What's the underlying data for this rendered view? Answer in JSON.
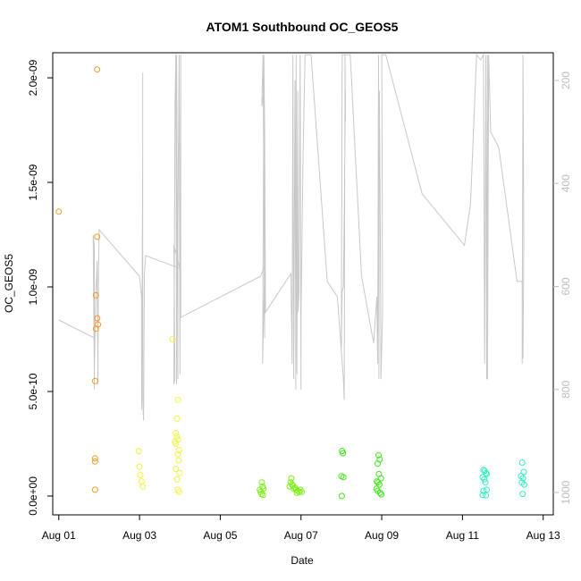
{
  "chart_data": {
    "type": "scatter",
    "title": "ATOM1 Southbound OC_GEOS5",
    "xlabel": "Date",
    "ylabel": "OC_GEOS5",
    "x_axis": {
      "unit": "days since Aug 01",
      "range": [
        -0.15,
        12.25
      ],
      "ticks": [
        0,
        2,
        4,
        6,
        8,
        10,
        12
      ],
      "tick_labels": [
        "Aug 01",
        "Aug 03",
        "Aug 05",
        "Aug 07",
        "Aug 09",
        "Aug 11",
        "Aug 13"
      ]
    },
    "y_axis": {
      "range": [
        -9e-11,
        2.12e-09
      ],
      "ticks": [
        0,
        5e-10,
        1e-09,
        1.5e-09,
        2e-09
      ],
      "tick_labels": [
        "0.0e+00",
        "5.0e-10",
        "1.0e-09",
        "1.5e-09",
        "2.0e-09"
      ]
    },
    "y2_axis": {
      "label": "",
      "inverted": true,
      "ticks": [
        200,
        400,
        600,
        800,
        1000
      ],
      "tick_labels": [
        "200",
        "400",
        "600",
        "800",
        "1000"
      ],
      "color": "#bdbdbd"
    },
    "grid": false,
    "series": [
      {
        "color": "#f59a27",
        "points": [
          [
            0.0,
            1.36e-09
          ],
          [
            0.95,
            2.04e-09
          ],
          [
            0.95,
            1.24e-09
          ],
          [
            0.92,
            9.6e-10
          ],
          [
            0.95,
            8.5e-10
          ],
          [
            0.97,
            8.2e-10
          ],
          [
            0.92,
            8e-10
          ],
          [
            0.9,
            5.5e-10
          ],
          [
            0.9,
            1.8e-10
          ],
          [
            0.9,
            1.65e-10
          ],
          [
            0.9,
            3e-11
          ]
        ]
      },
      {
        "color": "#eef542",
        "points": [
          [
            1.98,
            2.15e-10
          ],
          [
            2.0,
            1.4e-10
          ],
          [
            2.02,
            1e-10
          ],
          [
            2.05,
            7e-11
          ],
          [
            2.08,
            4.5e-11
          ],
          [
            2.82,
            7.5e-10
          ],
          [
            2.95,
            4.6e-10
          ],
          [
            2.93,
            3.7e-10
          ],
          [
            2.9,
            3e-10
          ],
          [
            2.92,
            2.85e-10
          ],
          [
            2.95,
            2.7e-10
          ],
          [
            2.88,
            2.6e-10
          ],
          [
            2.9,
            2.5e-10
          ],
          [
            2.98,
            2.2e-10
          ],
          [
            2.95,
            2e-10
          ],
          [
            2.97,
            1.7e-10
          ],
          [
            2.9,
            1.3e-10
          ],
          [
            2.99,
            1.1e-10
          ],
          [
            2.93,
            8e-11
          ],
          [
            2.95,
            3e-11
          ],
          [
            2.98,
            2e-11
          ]
        ]
      },
      {
        "color": "#7eef1b",
        "points": [
          [
            5.03,
            6.5e-11
          ],
          [
            5.05,
            4.5e-11
          ],
          [
            5.07,
            3.5e-11
          ],
          [
            4.98,
            3e-11
          ],
          [
            5.0,
            2e-11
          ],
          [
            5.02,
            1e-11
          ],
          [
            5.06,
            5e-12
          ],
          [
            5.76,
            8.5e-11
          ],
          [
            5.74,
            6.5e-11
          ],
          [
            5.78,
            5.5e-11
          ],
          [
            5.72,
            4.5e-11
          ],
          [
            5.8,
            5e-11
          ],
          [
            5.82,
            3.5e-11
          ],
          [
            5.85,
            4e-11
          ],
          [
            5.88,
            3e-11
          ],
          [
            5.92,
            2.5e-11
          ],
          [
            5.96,
            2e-11
          ],
          [
            5.99,
            3e-11
          ],
          [
            6.02,
            2e-11
          ],
          [
            5.9,
            1.5e-11
          ]
        ]
      },
      {
        "color": "#42e61f",
        "points": [
          [
            7.02,
            2.15e-10
          ],
          [
            7.04,
            2.05e-10
          ],
          [
            7.0,
            9.5e-11
          ],
          [
            7.05,
            9e-11
          ],
          [
            7.01,
            0.0
          ],
          [
            7.92,
            1.95e-10
          ],
          [
            7.95,
            1.75e-10
          ],
          [
            7.9,
            1.55e-10
          ],
          [
            7.93,
            1.05e-10
          ],
          [
            7.98,
            8.5e-11
          ],
          [
            7.88,
            7e-11
          ],
          [
            7.91,
            6.5e-11
          ],
          [
            7.94,
            5.5e-11
          ],
          [
            7.87,
            3.5e-11
          ],
          [
            7.9,
            2.5e-11
          ],
          [
            7.96,
            1.5e-11
          ],
          [
            7.99,
            8e-12
          ]
        ]
      },
      {
        "color": "#35ecc0",
        "points": [
          [
            10.52,
            1.25e-10
          ],
          [
            10.55,
            1.2e-10
          ],
          [
            10.58,
            1.1e-10
          ],
          [
            10.6,
            1.05e-10
          ],
          [
            10.5,
            9e-11
          ],
          [
            10.54,
            8e-11
          ],
          [
            10.57,
            6.5e-11
          ],
          [
            10.6,
            3e-11
          ],
          [
            10.52,
            2.5e-11
          ],
          [
            10.5,
            5e-12
          ],
          [
            10.58,
            3e-12
          ],
          [
            11.48,
            1.6e-10
          ],
          [
            11.52,
            1.15e-10
          ],
          [
            11.45,
            9.5e-11
          ],
          [
            11.5,
            8.5e-11
          ],
          [
            11.47,
            6.5e-11
          ],
          [
            11.53,
            5.5e-11
          ],
          [
            11.49,
            1e-11
          ]
        ]
      }
    ],
    "pressure_track": {
      "color": "#c8c8c8",
      "points": [
        [
          0.0,
          665
        ],
        [
          0.88,
          700
        ],
        [
          0.88,
          710
        ],
        [
          0.88,
          800
        ],
        [
          0.88,
          520
        ],
        [
          0.85,
          500
        ],
        [
          0.88,
          770
        ],
        [
          0.92,
          610
        ],
        [
          0.95,
          550
        ],
        [
          0.97,
          790
        ],
        [
          0.98,
          600
        ],
        [
          1.0,
          490
        ],
        [
          2.0,
          580
        ],
        [
          2.05,
          620
        ],
        [
          2.05,
          830
        ],
        [
          2.05,
          840
        ],
        [
          2.07,
          500
        ],
        [
          2.08,
          310
        ],
        [
          2.08,
          185
        ],
        [
          2.08,
          700
        ],
        [
          2.08,
          820
        ],
        [
          2.1,
          860
        ],
        [
          2.12,
          580
        ],
        [
          2.15,
          540
        ],
        [
          3.0,
          565
        ],
        [
          2.85,
          520
        ],
        [
          2.88,
          780
        ],
        [
          2.85,
          790
        ],
        [
          2.88,
          250
        ],
        [
          2.9,
          150
        ],
        [
          2.92,
          790
        ],
        [
          2.92,
          150
        ],
        [
          2.95,
          780
        ],
        [
          2.95,
          490
        ],
        [
          2.98,
          150
        ],
        [
          3.0,
          770
        ],
        [
          3.02,
          150
        ],
        [
          3.02,
          660
        ],
        [
          5.0,
          580
        ],
        [
          5.1,
          560
        ],
        [
          5.05,
          750
        ],
        [
          5.08,
          220
        ],
        [
          5.03,
          250
        ],
        [
          5.06,
          150
        ],
        [
          5.1,
          700
        ],
        [
          5.08,
          150
        ],
        [
          5.1,
          300
        ],
        [
          5.12,
          650
        ],
        [
          5.75,
          575
        ],
        [
          5.78,
          750
        ],
        [
          5.8,
          150
        ],
        [
          5.82,
          780
        ],
        [
          5.85,
          200
        ],
        [
          5.87,
          800
        ],
        [
          5.88,
          150
        ],
        [
          5.9,
          770
        ],
        [
          5.92,
          220
        ],
        [
          5.93,
          650
        ],
        [
          5.95,
          610
        ],
        [
          5.98,
          150
        ],
        [
          6.0,
          800
        ],
        [
          6.0,
          670
        ],
        [
          6.05,
          350
        ],
        [
          6.1,
          150
        ],
        [
          6.25,
          150
        ],
        [
          6.65,
          590
        ],
        [
          6.9,
          620
        ],
        [
          7.05,
          780
        ],
        [
          7.07,
          820
        ],
        [
          7.09,
          150
        ],
        [
          7.1,
          280
        ],
        [
          7.1,
          220
        ],
        [
          7.08,
          400
        ],
        [
          7.05,
          600
        ],
        [
          7.02,
          610
        ],
        [
          7.0,
          720
        ],
        [
          7.02,
          150
        ],
        [
          7.22,
          150
        ],
        [
          7.5,
          580
        ],
        [
          7.8,
          710
        ],
        [
          7.88,
          620
        ],
        [
          7.9,
          750
        ],
        [
          7.92,
          150
        ],
        [
          7.93,
          780
        ],
        [
          7.94,
          220
        ],
        [
          7.96,
          430
        ],
        [
          7.98,
          780
        ],
        [
          8.02,
          650
        ],
        [
          8.0,
          150
        ],
        [
          8.1,
          150
        ],
        [
          9.0,
          420
        ],
        [
          10.05,
          520
        ],
        [
          10.2,
          440
        ],
        [
          10.35,
          150
        ],
        [
          10.45,
          160
        ],
        [
          10.52,
          150
        ],
        [
          10.55,
          750
        ],
        [
          10.58,
          150
        ],
        [
          10.6,
          780
        ],
        [
          10.62,
          150
        ],
        [
          10.62,
          780
        ],
        [
          10.65,
          150
        ],
        [
          10.7,
          300
        ],
        [
          10.9,
          330
        ],
        [
          11.35,
          590
        ],
        [
          11.48,
          590
        ],
        [
          11.48,
          750
        ],
        [
          11.5,
          150
        ],
        [
          11.52,
          520
        ],
        [
          11.5,
          740
        ]
      ]
    }
  }
}
